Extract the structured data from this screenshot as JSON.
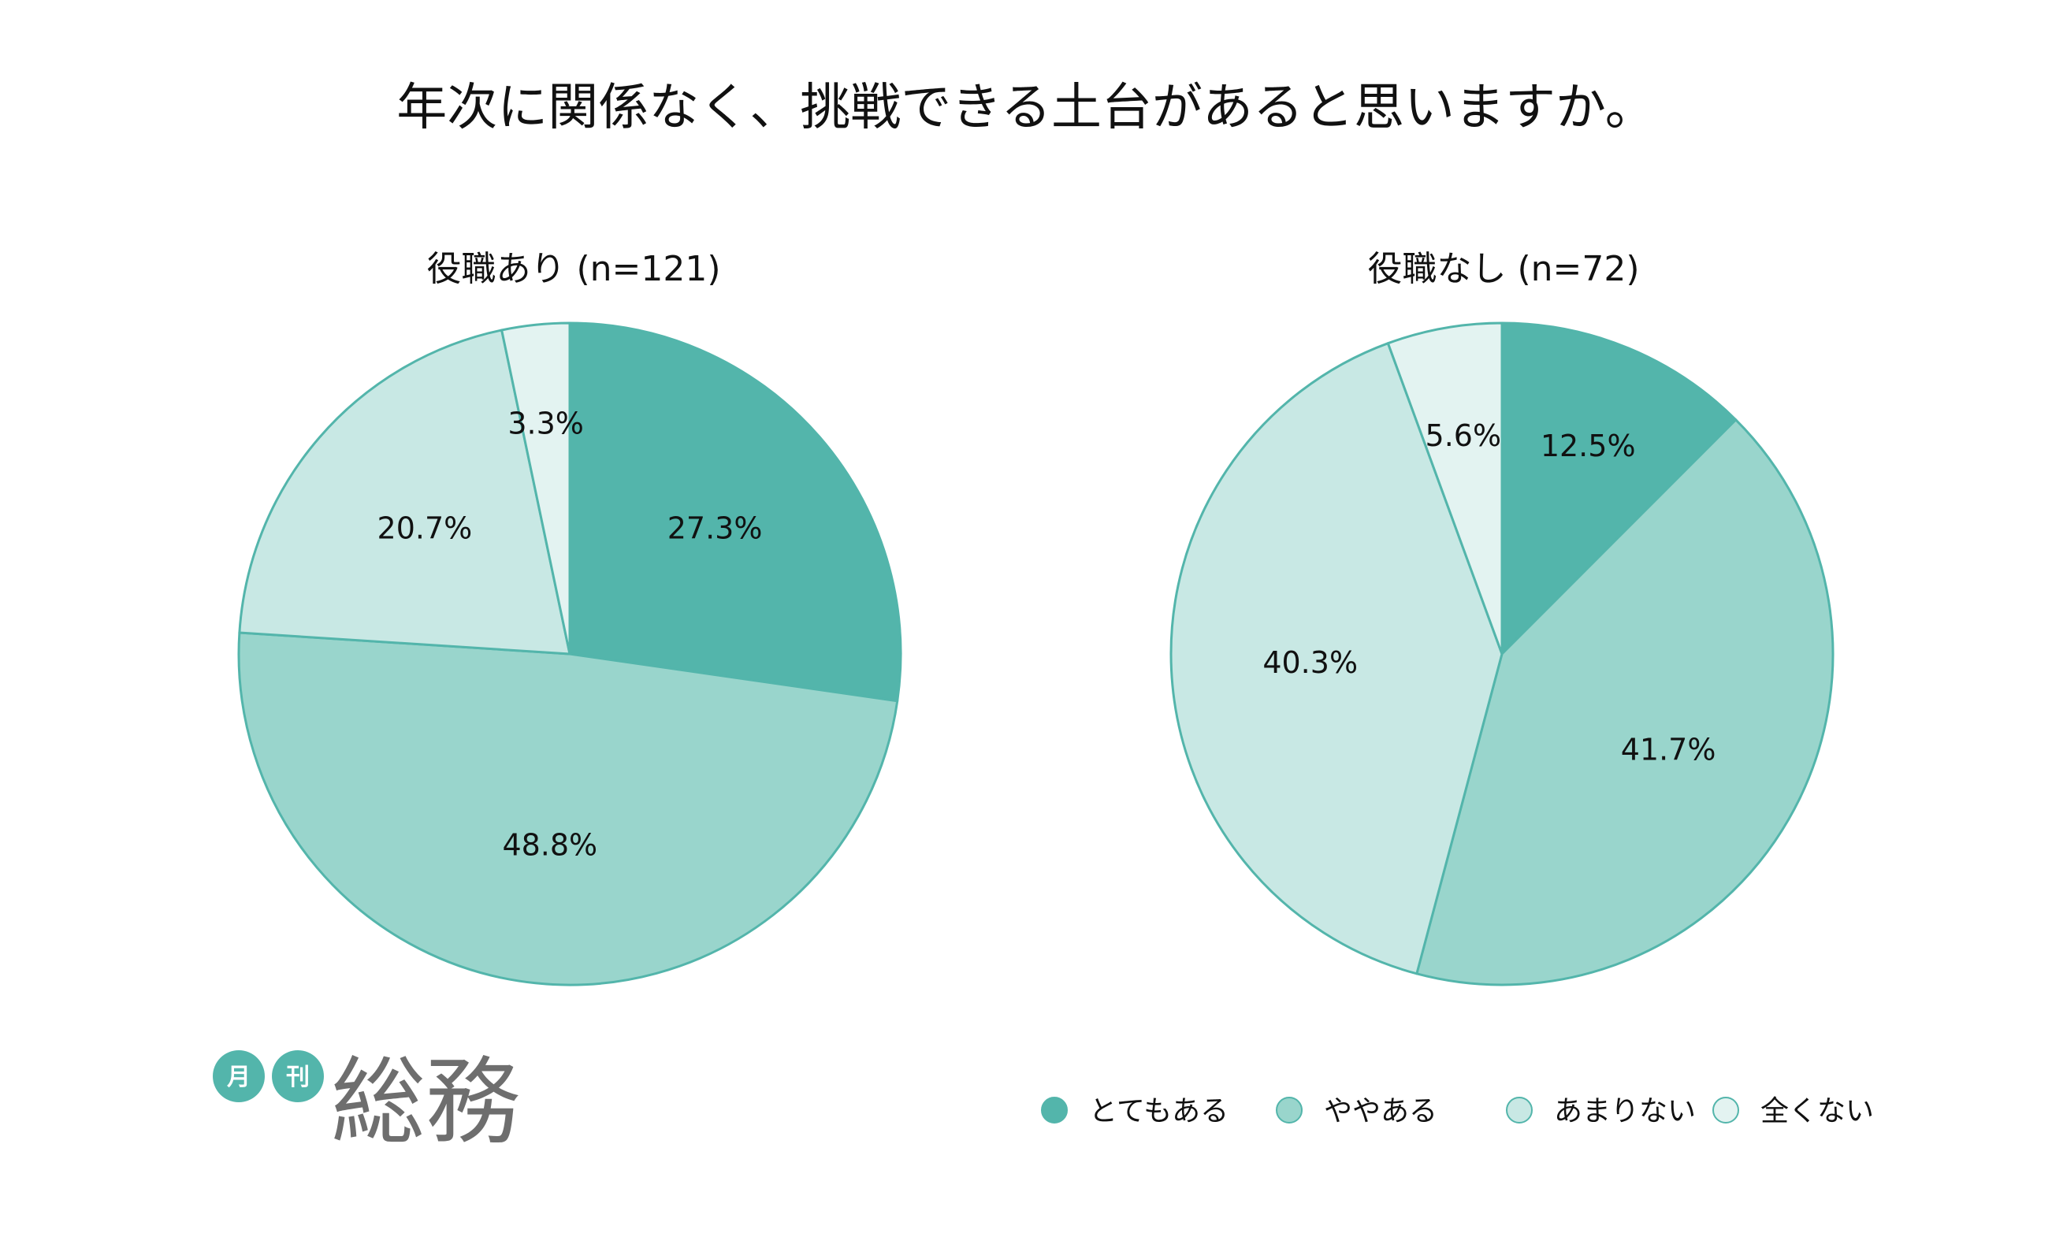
{
  "chart_data": {
    "type": "pie",
    "title": "年次に関係なく、挑戦できる土台があると思いますか。",
    "categories": [
      "とてもある",
      "ややある",
      "あまりない",
      "全くない"
    ],
    "colors": [
      "#53b5ab",
      "#99d5cc",
      "#c8e8e4",
      "#e3f3f1"
    ],
    "edge_color": "#53b5ab",
    "charts": [
      {
        "subtitle": "役職あり (n=121)",
        "values": [
          27.3,
          48.8,
          20.7,
          3.3
        ],
        "labels": [
          "27.3%",
          "48.8%",
          "20.7%",
          "3.3%"
        ]
      },
      {
        "subtitle": "役職なし (n=72)",
        "values": [
          12.5,
          41.7,
          40.3,
          5.6
        ],
        "labels": [
          "12.5%",
          "41.7%",
          "40.3%",
          "5.6%"
        ]
      }
    ],
    "legend_placement": "bottom-right"
  },
  "logo": {
    "badge_1": "月",
    "badge_2": "刊",
    "main": "総務"
  }
}
